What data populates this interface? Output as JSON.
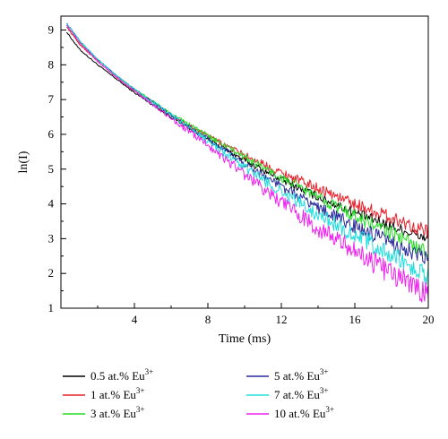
{
  "chart_data": {
    "type": "line",
    "xlabel": "Time (ms)",
    "ylabel": "ln(I)",
    "xlim": [
      0,
      20
    ],
    "ylim": [
      1,
      9.4
    ],
    "xticks": [
      4,
      8,
      12,
      16,
      20
    ],
    "yticks": [
      1,
      2,
      3,
      4,
      5,
      6,
      7,
      8,
      9
    ],
    "grid": false,
    "legend_position": "bottom",
    "series": [
      {
        "name": "0.5 at.% Eu",
        "label_main": "0.5 at.% Eu",
        "label_sup": "3+",
        "color": "#000000",
        "points": [
          [
            0.3,
            8.95
          ],
          [
            1,
            8.45
          ],
          [
            2,
            8.0
          ],
          [
            3,
            7.6
          ],
          [
            4,
            7.2
          ],
          [
            6,
            6.5
          ],
          [
            8,
            5.85
          ],
          [
            10,
            5.25
          ],
          [
            12,
            4.7
          ],
          [
            14,
            4.2
          ],
          [
            16,
            3.75
          ],
          [
            18,
            3.35
          ],
          [
            20,
            3.0
          ]
        ],
        "noise": 0.15
      },
      {
        "name": "1 at.% Eu",
        "label_main": "1 at.% Eu",
        "label_sup": "3+",
        "color": "#e8202a",
        "points": [
          [
            0.3,
            9.1
          ],
          [
            1,
            8.6
          ],
          [
            2,
            8.1
          ],
          [
            3,
            7.65
          ],
          [
            4,
            7.25
          ],
          [
            6,
            6.55
          ],
          [
            8,
            5.95
          ],
          [
            10,
            5.4
          ],
          [
            12,
            4.9
          ],
          [
            14,
            4.45
          ],
          [
            16,
            4.0
          ],
          [
            18,
            3.6
          ],
          [
            20,
            3.2
          ]
        ],
        "noise": 0.18
      },
      {
        "name": "3 at.% Eu",
        "label_main": "3 at.% Eu",
        "label_sup": "3+",
        "color": "#22dd22",
        "points": [
          [
            0.3,
            9.15
          ],
          [
            1,
            8.65
          ],
          [
            2,
            8.15
          ],
          [
            3,
            7.7
          ],
          [
            4,
            7.3
          ],
          [
            6,
            6.6
          ],
          [
            8,
            5.95
          ],
          [
            10,
            5.35
          ],
          [
            12,
            4.75
          ],
          [
            14,
            4.2
          ],
          [
            16,
            3.65
          ],
          [
            18,
            3.15
          ],
          [
            20,
            2.6
          ]
        ],
        "noise": 0.2
      },
      {
        "name": "5 at.% Eu",
        "label_main": "5 at.% Eu",
        "label_sup": "3+",
        "color": "#2a2a9a",
        "points": [
          [
            0.3,
            9.2
          ],
          [
            1,
            8.7
          ],
          [
            2,
            8.15
          ],
          [
            3,
            7.7
          ],
          [
            4,
            7.3
          ],
          [
            6,
            6.55
          ],
          [
            8,
            5.85
          ],
          [
            10,
            5.15
          ],
          [
            12,
            4.5
          ],
          [
            14,
            3.9
          ],
          [
            16,
            3.35
          ],
          [
            18,
            2.85
          ],
          [
            20,
            2.4
          ]
        ],
        "noise": 0.22
      },
      {
        "name": "7 at.% Eu",
        "label_main": "7 at.% Eu",
        "label_sup": "3+",
        "color": "#22dddd",
        "points": [
          [
            0.3,
            9.2
          ],
          [
            1,
            8.7
          ],
          [
            2,
            8.15
          ],
          [
            3,
            7.7
          ],
          [
            4,
            7.3
          ],
          [
            6,
            6.55
          ],
          [
            8,
            5.8
          ],
          [
            10,
            5.05
          ],
          [
            12,
            4.35
          ],
          [
            14,
            3.7
          ],
          [
            16,
            3.1
          ],
          [
            18,
            2.5
          ],
          [
            20,
            1.9
          ]
        ],
        "noise": 0.28
      },
      {
        "name": "10 at.% Eu",
        "label_main": "10 at.% Eu",
        "label_sup": "3+",
        "color": "#ee22ee",
        "points": [
          [
            0.3,
            9.15
          ],
          [
            1,
            8.65
          ],
          [
            2,
            8.1
          ],
          [
            3,
            7.65
          ],
          [
            4,
            7.25
          ],
          [
            6,
            6.45
          ],
          [
            8,
            5.7
          ],
          [
            10,
            4.85
          ],
          [
            12,
            4.05
          ],
          [
            14,
            3.3
          ],
          [
            16,
            2.65
          ],
          [
            18,
            2.0
          ],
          [
            20,
            1.4
          ]
        ],
        "noise": 0.32
      }
    ]
  }
}
